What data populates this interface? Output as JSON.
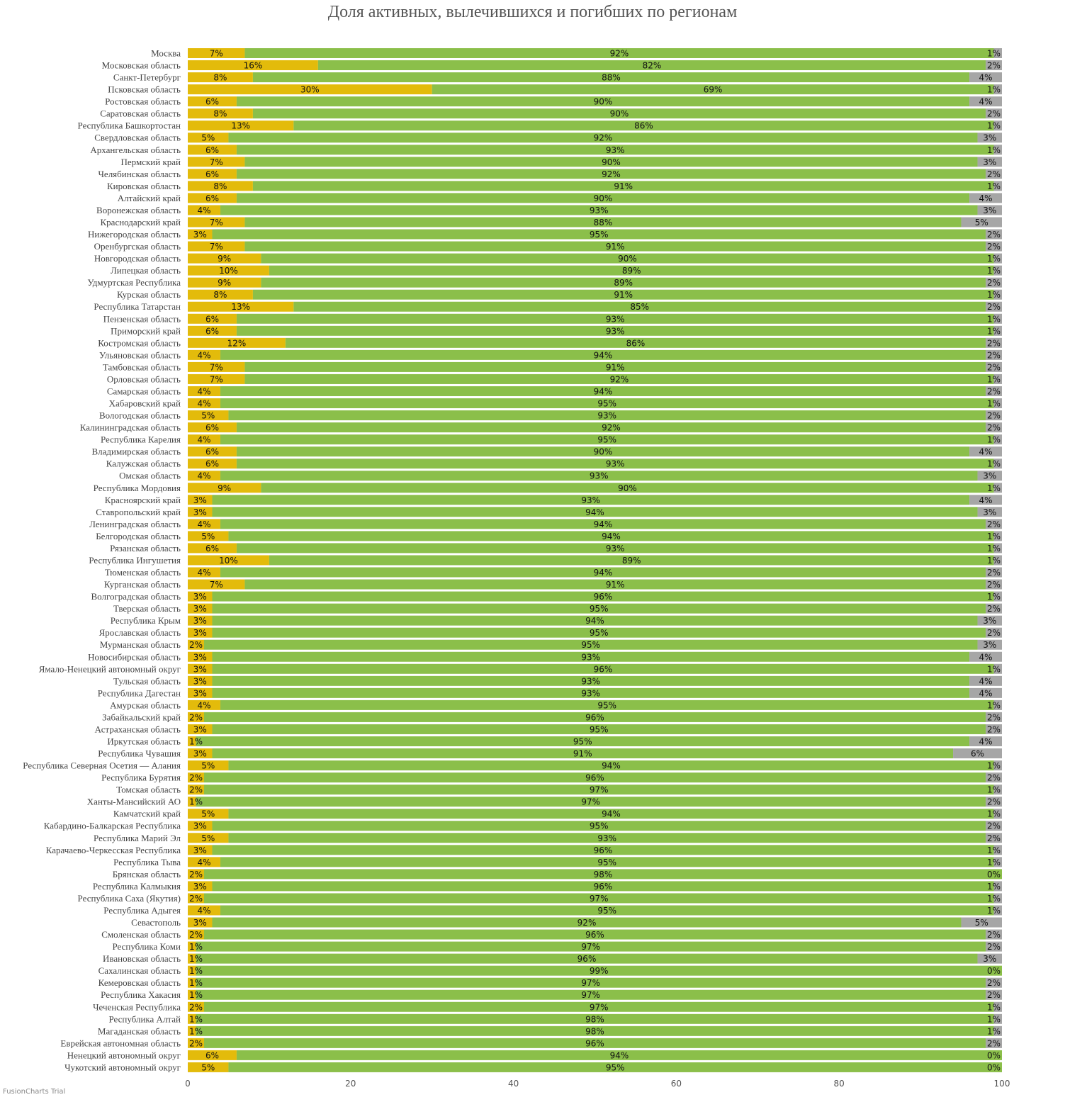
{
  "chart_data": {
    "type": "bar",
    "orientation": "horizontal",
    "stacked": true,
    "title": "Доля активных, вылечившихся и погибших по регионам",
    "xlim": [
      0,
      100
    ],
    "xticks": [
      "0",
      "20",
      "40",
      "60",
      "80",
      "100"
    ],
    "value_suffix": "%",
    "colors": [
      "#e3bb0b",
      "#8bbf4a",
      "#a6a6a6"
    ],
    "categories": [
      "Москва",
      "Московская область",
      "Санкт-Петербург",
      "Псковская область",
      "Ростовская область",
      "Саратовская область",
      "Республика Башкортостан",
      "Свердловская область",
      "Архангельская область",
      "Пермский край",
      "Челябинская область",
      "Кировская область",
      "Алтайский край",
      "Воронежская область",
      "Краснодарский край",
      "Нижегородская область",
      "Оренбургская область",
      "Новгородская область",
      "Липецкая область",
      "Удмуртская Республика",
      "Курская область",
      "Республика Татарстан",
      "Пензенская область",
      "Приморский край",
      "Костромская область",
      "Ульяновская область",
      "Тамбовская область",
      "Орловская область",
      "Самарская область",
      "Хабаровский край",
      "Вологодская область",
      "Калининградская область",
      "Республика Карелия",
      "Владимирская область",
      "Калужская область",
      "Омская область",
      "Республика Мордовия",
      "Красноярский край",
      "Ставропольский край",
      "Ленинградская область",
      "Белгородская область",
      "Рязанская область",
      "Республика Ингушетия",
      "Тюменская область",
      "Курганская область",
      "Волгоградская область",
      "Тверская область",
      "Республика Крым",
      "Ярославская область",
      "Мурманская область",
      "Новосибирская область",
      "Ямало-Ненецкий автономный округ",
      "Тульская область",
      "Республика Дагестан",
      "Амурская область",
      "Забайкальский край",
      "Астраханская область",
      "Иркутская область",
      "Республика Чувашия",
      "Республика Северная Осетия — Алания",
      "Республика Бурятия",
      "Томская область",
      "Ханты-Мансийский АО",
      "Камчатский край",
      "Кабардино-Балкарская Республика",
      "Республика Марий Эл",
      "Карачаево-Черкесская Республика",
      "Республика Тыва",
      "Брянская область",
      "Республика Калмыкия",
      "Республика Саха (Якутия)",
      "Республика Адыгея",
      "Севастополь",
      "Смоленская область",
      "Республика Коми",
      "Ивановская область",
      "Сахалинская область",
      "Кемеровская область",
      "Республика Хакасия",
      "Чеченская Республика",
      "Республика Алтай",
      "Магаданская область",
      "Еврейская автономная область",
      "Ненецкий автономный округ",
      "Чукотский автономный округ"
    ],
    "series": [
      {
        "values": [
          7,
          16,
          8,
          30,
          6,
          8,
          13,
          5,
          6,
          7,
          6,
          8,
          6,
          4,
          7,
          3,
          7,
          9,
          10,
          9,
          8,
          13,
          6,
          6,
          12,
          4,
          7,
          7,
          4,
          4,
          5,
          6,
          4,
          6,
          6,
          4,
          9,
          3,
          3,
          4,
          5,
          6,
          10,
          4,
          7,
          3,
          3,
          3,
          3,
          2,
          3,
          3,
          3,
          3,
          4,
          2,
          3,
          1,
          3,
          5,
          2,
          2,
          1,
          5,
          3,
          5,
          3,
          4,
          2,
          3,
          2,
          4,
          3,
          2,
          1,
          1,
          1,
          1,
          1,
          2,
          1,
          1,
          2,
          6,
          5
        ]
      },
      {
        "values": [
          92,
          82,
          88,
          69,
          90,
          90,
          86,
          92,
          93,
          90,
          92,
          91,
          90,
          93,
          88,
          95,
          91,
          90,
          89,
          89,
          91,
          85,
          93,
          93,
          86,
          94,
          91,
          92,
          94,
          95,
          93,
          92,
          95,
          90,
          93,
          93,
          90,
          93,
          94,
          94,
          94,
          93,
          89,
          94,
          91,
          96,
          95,
          94,
          95,
          95,
          93,
          96,
          93,
          93,
          95,
          96,
          95,
          95,
          91,
          94,
          96,
          97,
          97,
          94,
          95,
          93,
          96,
          95,
          98,
          96,
          97,
          95,
          92,
          96,
          97,
          96,
          99,
          97,
          97,
          97,
          98,
          98,
          96,
          94,
          95
        ]
      },
      {
        "values": [
          1,
          2,
          4,
          1,
          4,
          2,
          1,
          3,
          1,
          3,
          2,
          1,
          4,
          3,
          5,
          2,
          2,
          1,
          1,
          2,
          1,
          2,
          1,
          1,
          2,
          2,
          2,
          1,
          2,
          1,
          2,
          2,
          1,
          4,
          1,
          3,
          1,
          4,
          3,
          2,
          1,
          1,
          1,
          2,
          2,
          1,
          2,
          3,
          2,
          3,
          4,
          1,
          4,
          4,
          1,
          2,
          2,
          4,
          6,
          1,
          2,
          1,
          2,
          1,
          2,
          2,
          1,
          1,
          0,
          1,
          1,
          1,
          5,
          2,
          2,
          3,
          0,
          2,
          2,
          1,
          1,
          1,
          2,
          0,
          0
        ]
      }
    ]
  },
  "footer": {
    "watermark": "FusionCharts Trial"
  }
}
